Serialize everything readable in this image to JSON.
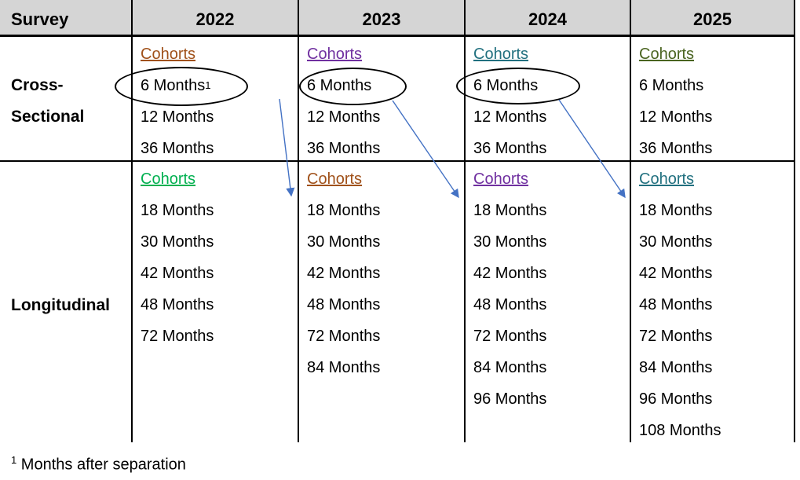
{
  "header": {
    "survey_label": "Survey",
    "years": [
      "2022",
      "2023",
      "2024",
      "2025"
    ]
  },
  "cross_sectional": {
    "row_label_line1": "Cross-",
    "row_label_line2": "Sectional",
    "columns": [
      {
        "year": "2022",
        "cohorts_label": "Cohorts",
        "cohort_color": "#A0511A",
        "six_months": "6 Months",
        "six_sup": "1",
        "circled": true,
        "other_items": [
          "12 Months",
          "36 Months"
        ]
      },
      {
        "year": "2023",
        "cohorts_label": "Cohorts",
        "cohort_color": "#7030A0",
        "six_months": "6 Months",
        "six_sup": "",
        "circled": true,
        "other_items": [
          "12 Months",
          "36 Months"
        ]
      },
      {
        "year": "2024",
        "cohorts_label": "Cohorts",
        "cohort_color": "#21707F",
        "six_months": "6 Months",
        "six_sup": "",
        "circled": true,
        "other_items": [
          "12 Months",
          "36 Months"
        ]
      },
      {
        "year": "2025",
        "cohorts_label": "Cohorts",
        "cohort_color": "#4A6420",
        "six_months": "6 Months",
        "six_sup": "",
        "circled": false,
        "other_items": [
          "12 Months",
          "36 Months"
        ]
      }
    ]
  },
  "longitudinal": {
    "row_label": "Longitudinal",
    "columns": [
      {
        "year": "2022",
        "cohorts_label": "Cohorts",
        "cohort_color": "#00B050",
        "items": [
          "18 Months",
          "30 Months",
          "42 Months",
          "48 Months",
          "72 Months"
        ]
      },
      {
        "year": "2023",
        "cohorts_label": "Cohorts",
        "cohort_color": "#A0511A",
        "items": [
          "18 Months",
          "30 Months",
          "42 Months",
          "48 Months",
          "72 Months",
          "84 Months"
        ]
      },
      {
        "year": "2024",
        "cohorts_label": "Cohorts",
        "cohort_color": "#7030A0",
        "items": [
          "18 Months",
          "30 Months",
          "42 Months",
          "48 Months",
          "72 Months",
          "84 Months",
          "96 Months"
        ]
      },
      {
        "year": "2025",
        "cohorts_label": "Cohorts",
        "cohort_color": "#21707F",
        "items": [
          "18 Months",
          "30 Months",
          "42 Months",
          "48 Months",
          "72 Months",
          "84 Months",
          "96 Months",
          "108 Months"
        ]
      }
    ]
  },
  "annotations": {
    "ellipse_color": "#000000",
    "arrow_color": "#4472C4",
    "arrows": [
      "2022 cross-sectional 6 Months to 2023 longitudinal",
      "2023 cross-sectional 6 Months to 2024 longitudinal",
      "2024 cross-sectional 6 Months to 2025 longitudinal"
    ]
  },
  "footnote": {
    "marker": "1",
    "text": "Months after separation"
  }
}
